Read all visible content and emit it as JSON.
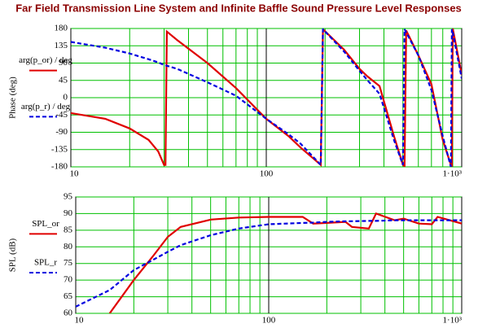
{
  "chart_data": [
    {
      "type": "line",
      "title": "Far Field Transmission Line System and Infinite Baffle Sound Pressure Level Responses",
      "y_label": "Phase (deg)",
      "log_x": true,
      "grid": true,
      "xlim": [
        10,
        1000
      ],
      "xticks": [
        10,
        100,
        {
          "value": 1000,
          "label": "1·10³"
        }
      ],
      "x_minor_ticks": [
        20,
        30,
        40,
        50,
        60,
        70,
        80,
        90,
        200,
        300,
        400,
        500,
        600,
        700,
        800,
        900
      ],
      "ylim": [
        -180,
        180
      ],
      "yticks": [
        -180,
        -135,
        -90,
        -45,
        0,
        45,
        90,
        135,
        180
      ],
      "x": [
        10,
        15,
        20,
        25,
        28,
        30,
        30.5,
        31,
        35,
        50,
        70,
        100,
        130,
        150,
        190,
        195,
        250,
        300,
        330,
        380,
        450,
        500,
        510,
        520,
        600,
        700,
        800,
        880,
        890,
        900,
        1000
      ],
      "series": [
        {
          "name": "arg(p_or) / deg",
          "color": "#e00000",
          "dash": false,
          "values": [
            -40,
            -55,
            -80,
            -110,
            -140,
            -175,
            -175,
            172,
            150,
            90,
            25,
            -55,
            -100,
            -130,
            -175,
            178,
            125,
            75,
            55,
            30,
            -100,
            -175,
            -178,
            175,
            110,
            35,
            -110,
            -175,
            -178,
            180,
            60
          ]
        },
        {
          "name": "arg(p_r) / deg",
          "color": "#0000e0",
          "dash": true,
          "values": [
            145,
            130,
            115,
            100,
            92,
            85,
            84,
            83,
            75,
            40,
            5,
            -55,
            -95,
            -120,
            -175,
            178,
            120,
            70,
            45,
            10,
            -110,
            -175,
            178,
            170,
            110,
            20,
            -100,
            -180,
            178,
            170,
            50
          ]
        }
      ]
    },
    {
      "type": "line",
      "y_label": "SPL (dB)",
      "log_x": true,
      "grid": true,
      "xlim": [
        10,
        1000
      ],
      "xticks": [
        10,
        100,
        {
          "value": 1000,
          "label": "1·10³"
        }
      ],
      "x_minor_ticks": [
        20,
        30,
        40,
        50,
        60,
        70,
        80,
        90,
        200,
        300,
        400,
        500,
        600,
        700,
        800,
        900
      ],
      "ylim": [
        60,
        95
      ],
      "yticks": [
        60,
        65,
        70,
        75,
        80,
        85,
        90,
        95
      ],
      "x": [
        10,
        15,
        20,
        25,
        30,
        35,
        50,
        70,
        100,
        150,
        170,
        200,
        250,
        270,
        330,
        360,
        450,
        500,
        600,
        700,
        750,
        1000
      ],
      "series": [
        {
          "name": "SPL_or",
          "color": "#e00000",
          "dash": false,
          "values": [
            null,
            60,
            70,
            77,
            83,
            86,
            88.2,
            88.8,
            89,
            89,
            87,
            87.2,
            87.5,
            86,
            85.5,
            90,
            88,
            88.5,
            87,
            86.8,
            89,
            87
          ]
        },
        {
          "name": "SPL_r",
          "color": "#0000e0",
          "dash": true,
          "values": [
            62,
            67,
            73,
            76,
            78.5,
            80.5,
            83.5,
            85.5,
            86.8,
            87.2,
            87.3,
            87.5,
            87.7,
            87.7,
            87.8,
            87.8,
            88,
            88,
            88,
            88,
            88,
            88
          ]
        }
      ]
    }
  ]
}
